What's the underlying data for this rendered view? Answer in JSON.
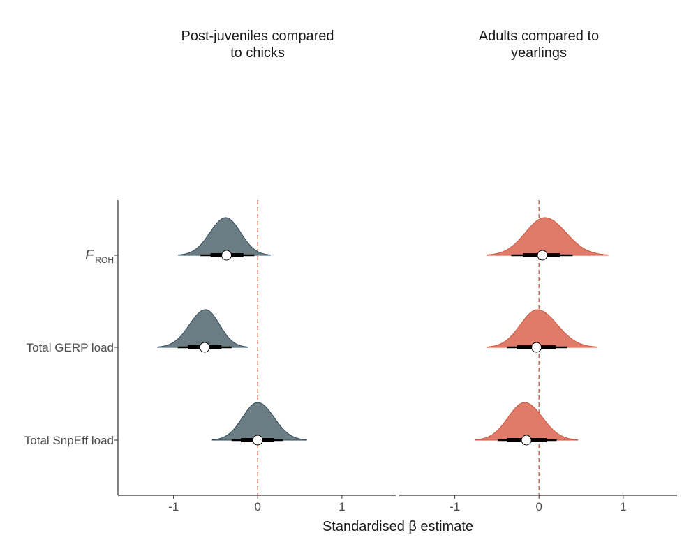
{
  "chart_data": {
    "type": "halfeye",
    "xlabel": "Standardised β estimate",
    "xticks": [
      -1,
      0,
      1
    ],
    "xlim": [
      -1.66,
      1.64
    ],
    "reference_line": 0,
    "reference_line_color": "#c8553d",
    "rows": [
      "F_ROH",
      "Total GERP load",
      "Total SnpEff load"
    ],
    "row_labels": [
      {
        "main": "F",
        "sub": "ROH"
      },
      {
        "main": "Total GERP load",
        "sub": ""
      },
      {
        "main": "Total SnpEff load",
        "sub": ""
      }
    ],
    "panels": [
      {
        "title_line1": "Post-juveniles compared",
        "title_line2": "to chicks",
        "color": "#6b7d83",
        "outline": "#2f4a5a",
        "estimates": [
          {
            "row": "F_ROH",
            "median": -0.37,
            "inner": [
              -0.56,
              -0.17
            ],
            "outer": [
              -0.68,
              -0.04
            ],
            "range": [
              -0.94,
              0.15
            ],
            "peak": -0.38,
            "skew": 0.0
          },
          {
            "row": "Total GERP load",
            "median": -0.63,
            "inner": [
              -0.83,
              -0.43
            ],
            "outer": [
              -0.95,
              -0.31
            ],
            "range": [
              -1.19,
              -0.12
            ],
            "peak": -0.62,
            "skew": 0.0
          },
          {
            "row": "Total SnpEff load",
            "median": 0.0,
            "inner": [
              -0.2,
              0.19
            ],
            "outer": [
              -0.31,
              0.3
            ],
            "range": [
              -0.54,
              0.58
            ],
            "peak": 0.0,
            "skew": 0.0
          }
        ]
      },
      {
        "title_line1": "Adults compared to",
        "title_line2": "yearlings",
        "color": "#e07b6a",
        "outline": "#c8553d",
        "estimates": [
          {
            "row": "F_ROH",
            "median": 0.04,
            "inner": [
              -0.19,
              0.25
            ],
            "outer": [
              -0.33,
              0.4
            ],
            "range": [
              -0.62,
              0.82
            ],
            "peak": 0.07,
            "skew": 0.0
          },
          {
            "row": "Total GERP load",
            "median": -0.03,
            "inner": [
              -0.26,
              0.2
            ],
            "outer": [
              -0.38,
              0.33
            ],
            "range": [
              -0.62,
              0.69
            ],
            "peak": -0.02,
            "skew": 0.0
          },
          {
            "row": "Total SnpEff load",
            "median": -0.15,
            "inner": [
              -0.38,
              0.09
            ],
            "outer": [
              -0.49,
              0.21
            ],
            "range": [
              -0.76,
              0.46
            ],
            "peak": -0.17,
            "skew": 0.0
          }
        ]
      }
    ]
  }
}
